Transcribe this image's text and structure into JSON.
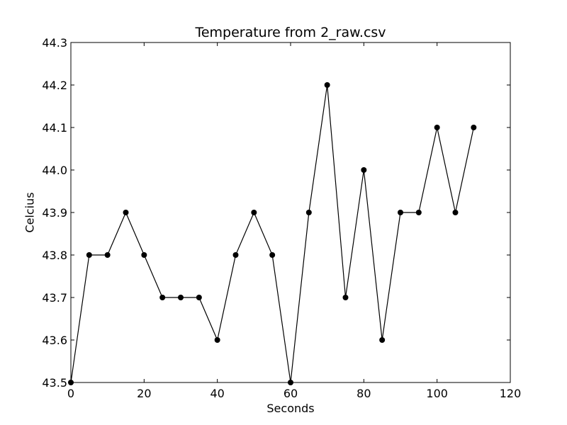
{
  "chart_data": {
    "type": "line",
    "title": "Temperature from 2_raw.csv",
    "xlabel": "Seconds",
    "ylabel": "Celcius",
    "xlim": [
      0,
      120
    ],
    "ylim": [
      43.5,
      44.3
    ],
    "xticks": [
      0,
      20,
      40,
      60,
      80,
      100,
      120
    ],
    "xtick_labels": [
      "0",
      "20",
      "40",
      "60",
      "80",
      "100",
      "120"
    ],
    "yticks": [
      43.5,
      43.6,
      43.7,
      43.8,
      43.9,
      44.0,
      44.1,
      44.2,
      44.3
    ],
    "ytick_labels": [
      "43.5",
      "43.6",
      "43.7",
      "43.8",
      "43.9",
      "44.0",
      "44.1",
      "44.2",
      "44.3"
    ],
    "grid": false,
    "series": [
      {
        "color": "#000000",
        "marker": "circle",
        "x": [
          0,
          5,
          10,
          15,
          20,
          25,
          30,
          35,
          40,
          45,
          50,
          55,
          60,
          65,
          70,
          75,
          80,
          85,
          90,
          95,
          100,
          105,
          110
        ],
        "y": [
          43.5,
          43.8,
          43.8,
          43.9,
          43.8,
          43.7,
          43.7,
          43.7,
          43.6,
          43.8,
          43.9,
          43.8,
          43.5,
          43.9,
          44.2,
          43.7,
          44.0,
          43.6,
          43.9,
          43.9,
          44.1,
          43.9,
          44.1
        ]
      }
    ]
  }
}
